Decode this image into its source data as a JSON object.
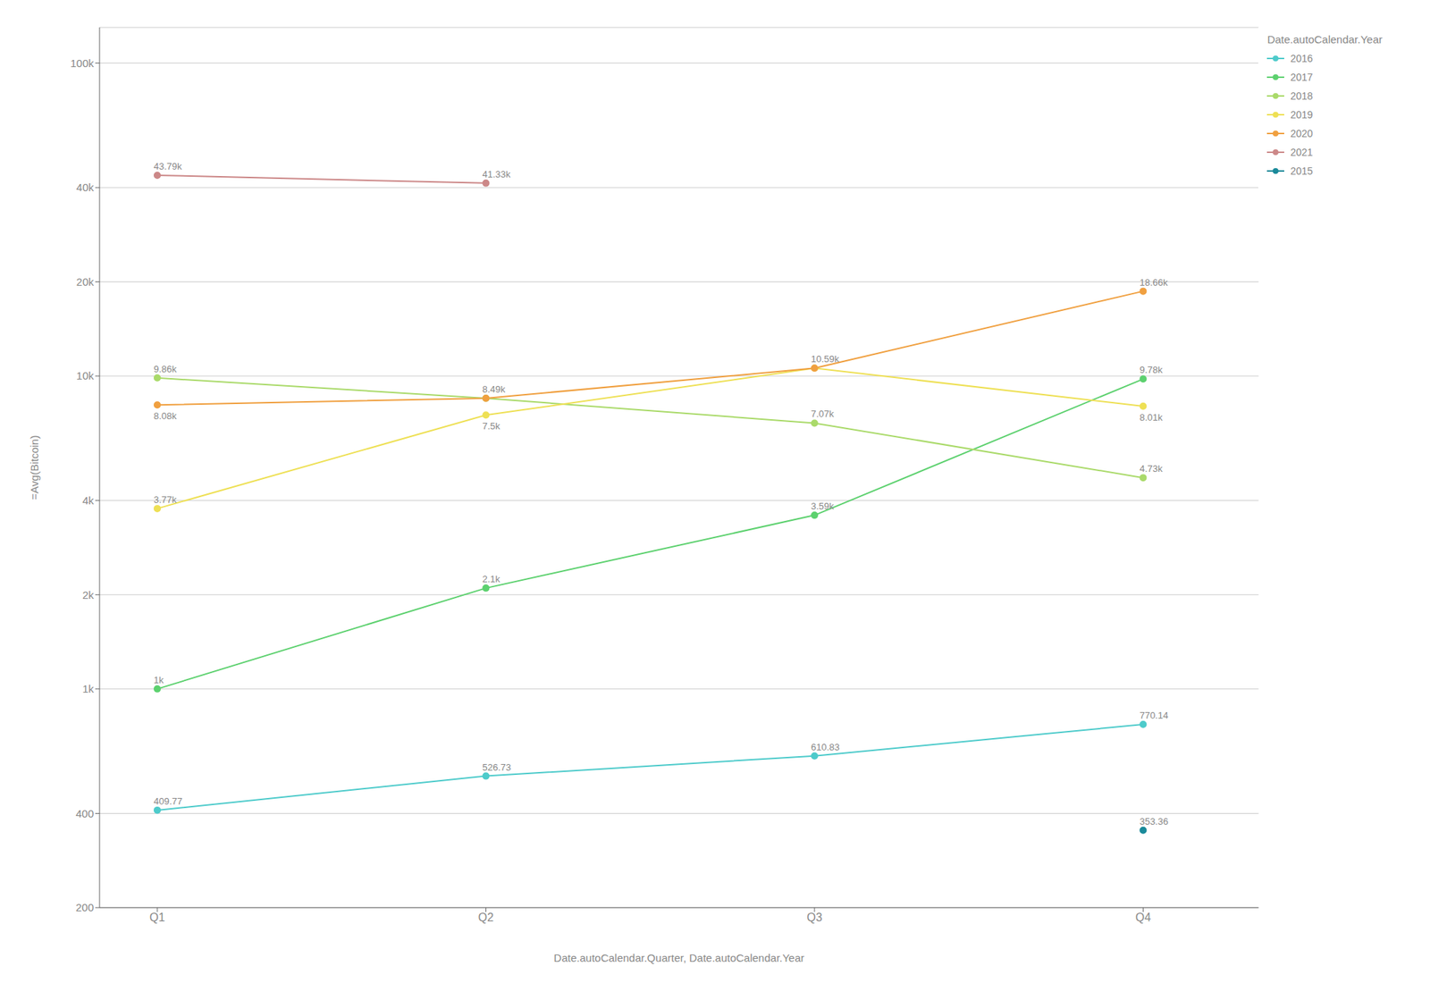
{
  "chart_data": {
    "type": "line",
    "xlabel": "Date.autoCalendar.Quarter, Date.autoCalendar.Year",
    "ylabel": "=Avg(Bitcoin)",
    "legend_title": "Date.autoCalendar.Year",
    "categories": [
      "Q1",
      "Q2",
      "Q3",
      "Q4"
    ],
    "series": [
      {
        "name": "2016",
        "color": "#4ECBCB",
        "values": [
          409.77,
          526.73,
          610.83,
          770.14
        ],
        "value_labels": [
          "409.77",
          "526.73",
          "610.83",
          "770.14"
        ]
      },
      {
        "name": "2017",
        "color": "#5DD16F",
        "values": [
          1000,
          2100,
          3590,
          9780
        ],
        "value_labels": [
          "1k",
          "2.1k",
          "3.59k",
          "9.78k"
        ]
      },
      {
        "name": "2018",
        "color": "#AADA6A",
        "values": [
          9860,
          8490,
          7070,
          4730
        ],
        "value_labels": [
          "9.86k",
          "8.49k",
          "7.07k",
          "4.73k"
        ]
      },
      {
        "name": "2019",
        "color": "#EEE055",
        "values": [
          3770,
          7500,
          10590,
          8010
        ],
        "value_labels": [
          "3.77k",
          "7.5k",
          null,
          "8.01k"
        ]
      },
      {
        "name": "2020",
        "color": "#F0A040",
        "values": [
          8080,
          8490,
          10590,
          18660
        ],
        "value_labels": [
          "8.08k",
          null,
          "10.59k",
          "18.66k"
        ]
      },
      {
        "name": "2021",
        "color": "#CC8888",
        "values": [
          43790,
          41330,
          null,
          null
        ],
        "value_labels": [
          "43.79k",
          "41.33k",
          null,
          null
        ]
      },
      {
        "name": "2015",
        "color": "#1A8A9A",
        "values": [
          null,
          null,
          null,
          353.36
        ],
        "value_labels": [
          null,
          null,
          null,
          "353.36"
        ]
      }
    ],
    "log": "y",
    "ylim": [
      200,
      130000
    ],
    "yticks": [
      200,
      400,
      {
        "value": 1000,
        "label": "1k"
      },
      {
        "value": 2000,
        "label": "2k"
      },
      {
        "value": 4000,
        "label": "4k"
      },
      {
        "value": 10000,
        "label": "10k"
      },
      {
        "value": 20000,
        "label": "20k"
      },
      {
        "value": 40000,
        "label": "40k"
      },
      {
        "value": 100000,
        "label": "100k"
      }
    ],
    "grid": true,
    "legend": "upper right",
    "data_labels": true,
    "marker": "circle"
  }
}
